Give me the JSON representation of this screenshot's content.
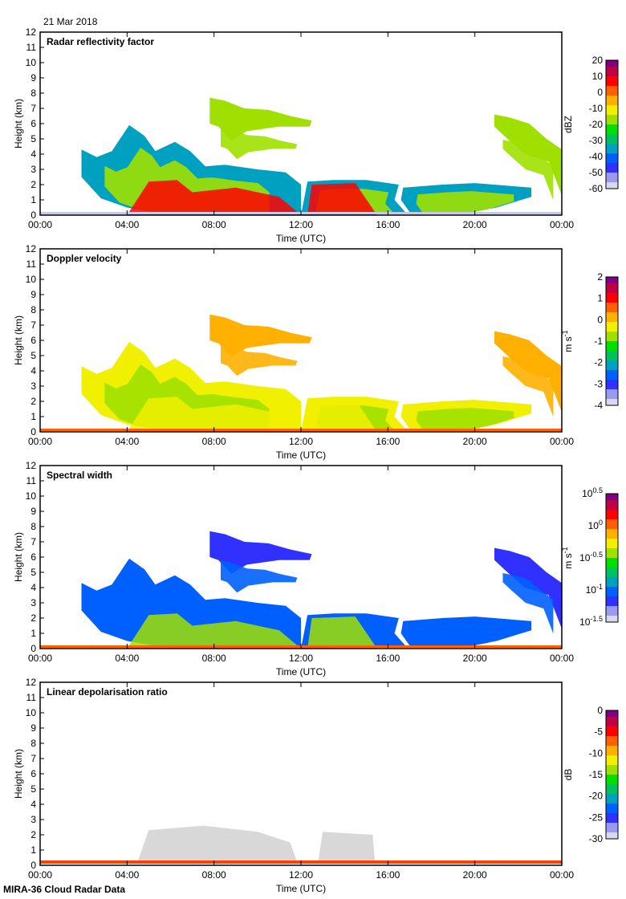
{
  "date": "21 Mar 2018",
  "footer": "MIRA-36 Cloud Radar Data",
  "chart_data": [
    {
      "type": "heatmap",
      "title": "Radar reflectivity factor",
      "xlabel": "Time (UTC)",
      "ylabel": "Height (km)",
      "xticks": [
        "00:00",
        "04:00",
        "08:00",
        "12:00",
        "16:00",
        "20:00",
        "00:00"
      ],
      "xlim": [
        0,
        24
      ],
      "ylim": [
        0,
        12
      ],
      "yticks": [
        "0",
        "1",
        "2",
        "3",
        "4",
        "5",
        "6",
        "7",
        "8",
        "9",
        "10",
        "11",
        "12"
      ],
      "colorbar": {
        "unit": "dBZ",
        "ticks": [
          "20",
          "10",
          "0",
          "-10",
          "-20",
          "-30",
          "-40",
          "-50",
          "-60"
        ],
        "range": [
          -60,
          20
        ]
      }
    },
    {
      "type": "heatmap",
      "title": "Doppler velocity",
      "xlabel": "Time (UTC)",
      "ylabel": "Height (km)",
      "xticks": [
        "00:00",
        "04:00",
        "08:00",
        "12:00",
        "16:00",
        "20:00",
        "00:00"
      ],
      "xlim": [
        0,
        24
      ],
      "ylim": [
        0,
        12
      ],
      "yticks": [
        "0",
        "1",
        "2",
        "3",
        "4",
        "5",
        "6",
        "7",
        "8",
        "9",
        "10",
        "11",
        "12"
      ],
      "colorbar": {
        "unit": "m s-1",
        "ticks": [
          "2",
          "1",
          "0",
          "-1",
          "-2",
          "-3",
          "-4"
        ],
        "range": [
          -4,
          2
        ]
      }
    },
    {
      "type": "heatmap",
      "title": "Spectral width",
      "xlabel": "Time (UTC)",
      "ylabel": "Height (km)",
      "xticks": [
        "00:00",
        "04:00",
        "08:00",
        "12:00",
        "16:00",
        "20:00",
        "00:00"
      ],
      "xlim": [
        0,
        24
      ],
      "ylim": [
        0,
        12
      ],
      "yticks": [
        "0",
        "1",
        "2",
        "3",
        "4",
        "5",
        "6",
        "7",
        "8",
        "9",
        "10",
        "11",
        "12"
      ],
      "colorbar": {
        "unit": "m s-1",
        "ticks": [
          "10^0.5",
          "10^0",
          "10^-0.5",
          "10^-1",
          "10^-1.5"
        ],
        "range": [
          -1.5,
          0.5
        ],
        "scale": "log"
      }
    },
    {
      "type": "heatmap",
      "title": "Linear depolarisation ratio",
      "xlabel": "Time (UTC)",
      "ylabel": "Height (km)",
      "xticks": [
        "00:00",
        "04:00",
        "08:00",
        "12:00",
        "16:00",
        "20:00",
        "00:00"
      ],
      "xlim": [
        0,
        24
      ],
      "ylim": [
        0,
        12
      ],
      "yticks": [
        "0",
        "1",
        "2",
        "3",
        "4",
        "5",
        "6",
        "7",
        "8",
        "9",
        "10",
        "11",
        "12"
      ],
      "colorbar": {
        "unit": "dB",
        "ticks": [
          "0",
          "-5",
          "-10",
          "-15",
          "-20",
          "-25",
          "-30"
        ],
        "range": [
          -30,
          0
        ]
      }
    }
  ]
}
